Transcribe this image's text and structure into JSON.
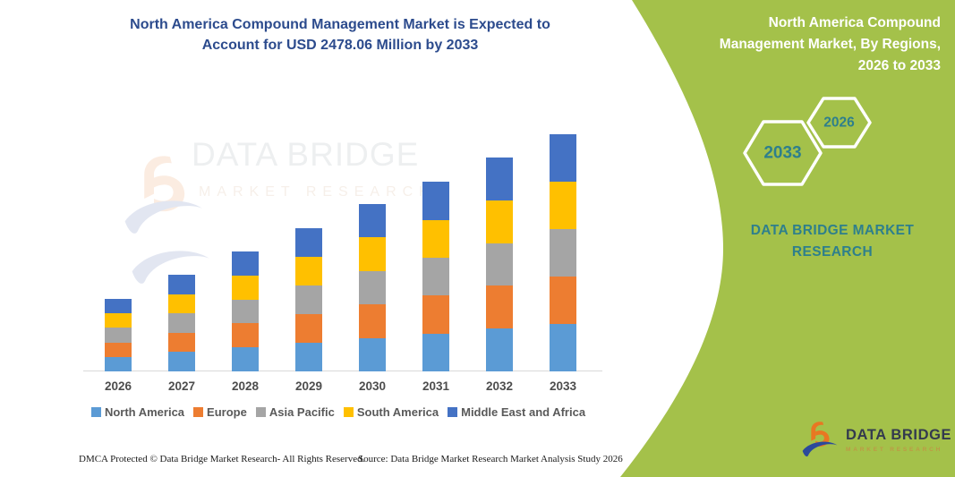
{
  "header": {
    "title": "North America Compound Management Market is Expected to\nAccount for USD 2478.06 Million by 2033"
  },
  "side_panel": {
    "title": "North America Compound\nManagement Market, By Regions,\n2026 to 2033",
    "hexagons": [
      {
        "label": "2033"
      },
      {
        "label": "2026"
      }
    ],
    "brand_text": "DATA BRIDGE MARKET\nRESEARCH",
    "background_color": "#A4C14A",
    "text_color": "#2E7F8C"
  },
  "watermark": {
    "line1": "DATA BRIDGE",
    "line2": "MARKET RESEARCH"
  },
  "logo": {
    "line1": "DATA BRIDGE",
    "line2": "MARKET RESEARCH"
  },
  "footer": {
    "left": "DMCA Protected © Data Bridge Market Research-  All Rights Reserved.",
    "right": "Source: Data Bridge Market Research  Market Analysis Study 2026"
  },
  "chart_data": {
    "type": "bar",
    "stacked": true,
    "title": "North America Compound Management Market is Expected to Account for USD 2478.06 Million by 2033",
    "unit": "USD Million",
    "categories": [
      "2026",
      "2027",
      "2028",
      "2029",
      "2030",
      "2031",
      "2032",
      "2033"
    ],
    "series": [
      {
        "name": "North America",
        "color": "#5B9BD5",
        "values": [
          152,
          202,
          251,
          299,
          350,
          396,
          447,
          495.6
        ]
      },
      {
        "name": "Europe",
        "color": "#ED7D31",
        "values": [
          151,
          202,
          251,
          299,
          350,
          397,
          447,
          495.6
        ]
      },
      {
        "name": "Asia Pacific",
        "color": "#A5A5A5",
        "values": [
          152,
          202,
          250,
          299,
          350,
          396,
          447,
          495.6
        ]
      },
      {
        "name": "South America",
        "color": "#FFC000",
        "values": [
          152,
          202,
          251,
          300,
          349,
          396,
          447,
          495.6
        ]
      },
      {
        "name": "Middle East and Africa",
        "color": "#4472C4",
        "values": [
          151,
          202,
          250,
          299,
          350,
          397,
          447,
          495.66
        ]
      }
    ],
    "totals": [
      758,
      1010,
      1253,
      1496,
      1749,
      1982,
      2235,
      2478.06
    ],
    "xlabel": "",
    "ylabel": "",
    "ylim": [
      0,
      2600
    ],
    "y_axis_visible": false,
    "grid": false,
    "legend_position": "bottom"
  }
}
